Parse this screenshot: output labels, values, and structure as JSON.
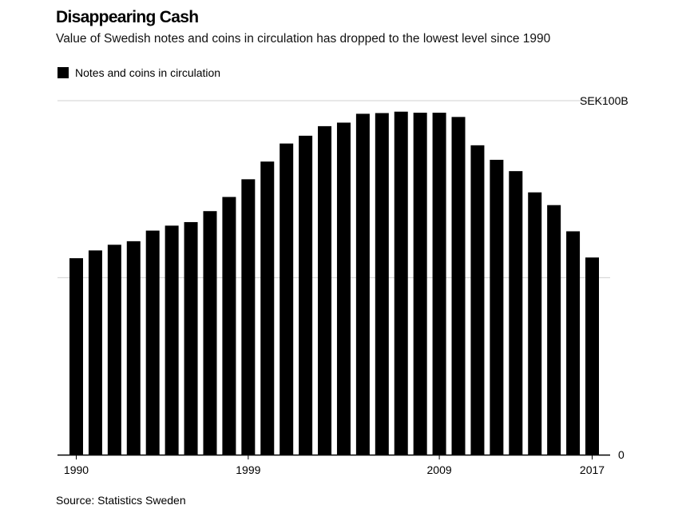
{
  "title": "Disappearing Cash",
  "subtitle": "Value of Swedish notes and coins in circulation has dropped to the lowest level since 1990",
  "legend": {
    "label": "Notes and coins in circulation",
    "color": "#000000"
  },
  "source": "Source: Statistics Sweden",
  "chart_data": {
    "type": "bar",
    "categories": [
      "1990",
      "1991",
      "1992",
      "1993",
      "1994",
      "1995",
      "1996",
      "1997",
      "1998",
      "1999",
      "2000",
      "2001",
      "2002",
      "2003",
      "2004",
      "2005",
      "2006",
      "2007",
      "2008",
      "2009",
      "2010",
      "2011",
      "2012",
      "2013",
      "2014",
      "2015",
      "2016",
      "2017"
    ],
    "series": [
      {
        "name": "Notes and coins in circulation",
        "values": [
          55.5,
          57.7,
          59.3,
          60.3,
          63.3,
          64.7,
          65.7,
          68.8,
          72.8,
          77.8,
          82.8,
          87.9,
          90.1,
          92.8,
          93.8,
          96.3,
          96.5,
          96.9,
          96.6,
          96.6,
          95.4,
          87.4,
          83.3,
          80.1,
          74.1,
          70.5,
          63.1,
          55.7
        ]
      }
    ],
    "y_ticks": [
      {
        "value": 100,
        "label": "SEK100B"
      },
      {
        "value": 50,
        "label": ""
      },
      {
        "value": 0,
        "label": "0"
      }
    ],
    "x_tick_labels": [
      "1990",
      "1999",
      "2009",
      "2017"
    ],
    "ylim": [
      0,
      100
    ],
    "bar_color": "#000000",
    "grid_color": "#d9d9d9",
    "grid": true,
    "legend_position": "top-left"
  }
}
